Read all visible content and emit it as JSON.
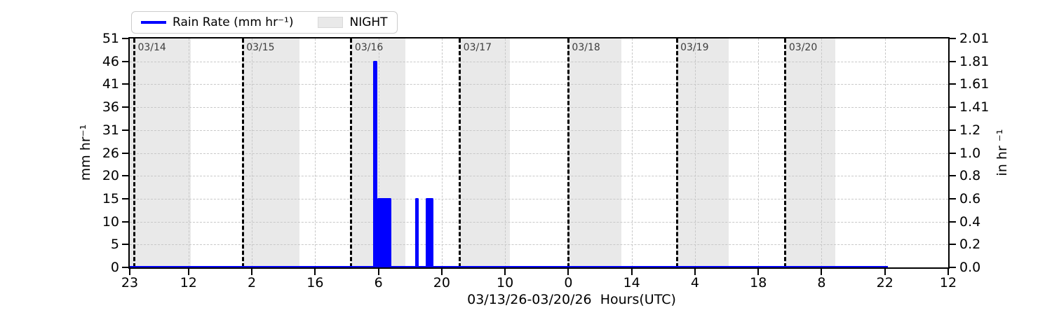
{
  "legend": {
    "rain_label": "Rain Rate (mm hr⁻¹)",
    "night_label": "NIGHT"
  },
  "axes": {
    "left_label": "mm hr⁻¹",
    "right_label": "in hr ⁻¹",
    "x_label": "03/13/26-03/20/26  Hours(UTC)"
  },
  "chart_data": {
    "type": "bar",
    "title": "",
    "xlabel": "03/13/26-03/20/26  Hours(UTC)",
    "ylabel_left": "mm hr⁻¹",
    "ylabel_right": "in hr ⁻¹",
    "x_unit": "hours since 03/13/26 23:00 UTC",
    "xlim": [
      0,
      181
    ],
    "ylim_left_mm": [
      0,
      51
    ],
    "ylim_right_in": [
      0.0,
      2.01
    ],
    "grid": true,
    "legend_position": "upper left",
    "x_ticks": [
      {
        "t": 0,
        "label": "23"
      },
      {
        "t": 13,
        "label": "12"
      },
      {
        "t": 27,
        "label": "2"
      },
      {
        "t": 41,
        "label": "16"
      },
      {
        "t": 55,
        "label": "6"
      },
      {
        "t": 69,
        "label": "20"
      },
      {
        "t": 83,
        "label": "10"
      },
      {
        "t": 97,
        "label": "0"
      },
      {
        "t": 111,
        "label": "14"
      },
      {
        "t": 125,
        "label": "4"
      },
      {
        "t": 139,
        "label": "18"
      },
      {
        "t": 153,
        "label": "8"
      },
      {
        "t": 167,
        "label": "22"
      },
      {
        "t": 181,
        "label": "12"
      }
    ],
    "y_ticks": [
      {
        "mm_value": 51.0,
        "mm_label": "51",
        "in_label": "2.01"
      },
      {
        "mm_value": 45.9,
        "mm_label": "46",
        "in_label": "1.81"
      },
      {
        "mm_value": 40.8,
        "mm_label": "41",
        "in_label": "1.61"
      },
      {
        "mm_value": 35.7,
        "mm_label": "36",
        "in_label": "1.41"
      },
      {
        "mm_value": 30.6,
        "mm_label": "31",
        "in_label": "1.2"
      },
      {
        "mm_value": 25.5,
        "mm_label": "26",
        "in_label": "1.0"
      },
      {
        "mm_value": 20.4,
        "mm_label": "20",
        "in_label": "0.8"
      },
      {
        "mm_value": 15.3,
        "mm_label": "15",
        "in_label": "0.6"
      },
      {
        "mm_value": 10.2,
        "mm_label": "10",
        "in_label": "0.4"
      },
      {
        "mm_value": 5.1,
        "mm_label": "5",
        "in_label": "0.2"
      },
      {
        "mm_value": 0.0,
        "mm_label": "0",
        "in_label": "0.0"
      }
    ],
    "day_lines": [
      {
        "t": 1,
        "label": "03/14"
      },
      {
        "t": 25,
        "label": "03/15"
      },
      {
        "t": 49,
        "label": "03/16"
      },
      {
        "t": 73,
        "label": "03/17"
      },
      {
        "t": 97,
        "label": "03/18"
      },
      {
        "t": 121,
        "label": "03/19"
      },
      {
        "t": 145,
        "label": "03/20"
      }
    ],
    "night_bands": [
      {
        "t0": 0,
        "t1": 13.5
      },
      {
        "t0": 25,
        "t1": 37.5
      },
      {
        "t0": 49,
        "t1": 61.0
      },
      {
        "t0": 73,
        "t1": 84.0
      },
      {
        "t0": 97,
        "t1": 108.8
      },
      {
        "t0": 121,
        "t1": 132.5
      },
      {
        "t0": 145,
        "t1": 156.0
      }
    ],
    "rain_bars": [
      {
        "t0": 53.8,
        "t1": 54.8,
        "mm": 46.0,
        "in": 1.81
      },
      {
        "t0": 54.8,
        "t1": 57.9,
        "mm": 15.5,
        "in": 0.61
      },
      {
        "t0": 63.2,
        "t1": 63.9,
        "mm": 15.5,
        "in": 0.61
      },
      {
        "t0": 65.5,
        "t1": 67.1,
        "mm": 15.5,
        "in": 0.61
      }
    ],
    "baseline": {
      "t0": 0,
      "t1": 167.7,
      "mm": 0
    },
    "colors": {
      "rain": "#0000ff",
      "night": "#e9e9e9",
      "grid": "#c8c8c8",
      "day_line": "#000000",
      "date_label": "#3d3d3d",
      "axis": "#000000"
    }
  }
}
